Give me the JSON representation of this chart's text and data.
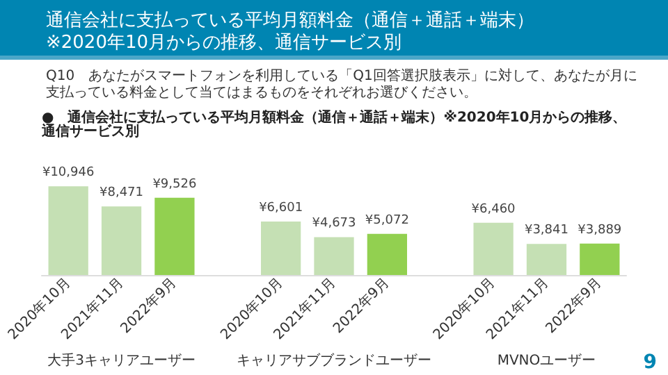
{
  "chart_data": {
    "type": "bar",
    "title": "通信会社に支払っている平均月額料金（通信＋通話＋端末）\n※2020年10月からの推移、通信サービス別",
    "subtitle": "Q10　あなたがスマートフォンを利用している「Q1回答選択肢表示」に対して、あなたが月に支払っている料金として当てはまるものをそれぞれお選びください。",
    "categories": [
      "2020年10月",
      "2021年11月",
      "2022年9月",
      null,
      "2020年10月",
      "2021年11月",
      "2022年9月",
      null,
      "2020年10月",
      "2021年11月",
      "2022年9月"
    ],
    "values": [
      10946,
      8471,
      9526,
      null,
      6601,
      4673,
      5072,
      null,
      6460,
      3841,
      3889
    ],
    "value_labels": [
      "¥10,946",
      "¥8,471",
      "¥9,526",
      null,
      "¥6,601",
      "¥4,673",
      "¥5,072",
      null,
      "¥6,460",
      "¥3,841",
      "¥3,889"
    ],
    "colors": [
      "#c5e0b4",
      "#c5e0b4",
      "#92d050",
      "#ffffff",
      "#c5e0b4",
      "#c5e0b4",
      "#92d050",
      "#ffffff",
      "#c5e0b4",
      "#c5e0b4",
      "#92d050"
    ],
    "annotations": [
      "●　通信会社に支払っている平均月額料金（通信＋通話＋端末）※2020年10月からの推移、通信サービス別",
      "大手3キャリアユーザー",
      "キャリアサブブランドユーザー",
      "MVNOユーザー",
      "9"
    ]
  }
}
